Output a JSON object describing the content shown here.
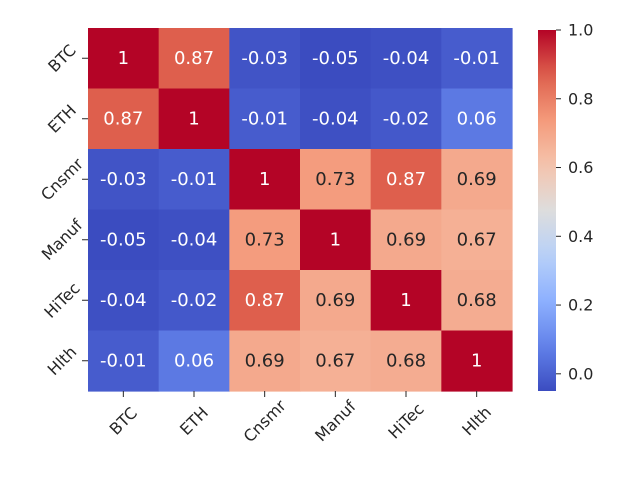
{
  "chart_data": {
    "type": "heatmap",
    "title": "",
    "xlabel": "",
    "ylabel": "",
    "x_labels": [
      "BTC",
      "ETH",
      "Cnsmr",
      "Manuf",
      "HiTec",
      "Hlth"
    ],
    "y_labels": [
      "BTC",
      "ETH",
      "Cnsmr",
      "Manuf",
      "HiTec",
      "Hlth"
    ],
    "values": [
      [
        1,
        0.87,
        -0.03,
        -0.05,
        -0.04,
        -0.01
      ],
      [
        0.87,
        1,
        -0.01,
        -0.04,
        -0.02,
        0.06
      ],
      [
        -0.03,
        -0.01,
        1,
        0.73,
        0.87,
        0.69
      ],
      [
        -0.05,
        -0.04,
        0.73,
        1,
        0.69,
        0.67
      ],
      [
        -0.04,
        -0.02,
        0.87,
        0.69,
        1,
        0.68
      ],
      [
        -0.01,
        0.06,
        0.69,
        0.67,
        0.68,
        1
      ]
    ],
    "annotations": [
      [
        "1",
        "0.87",
        "-0.03",
        "-0.05",
        "-0.04",
        "-0.01"
      ],
      [
        "0.87",
        "1",
        "-0.01",
        "-0.04",
        "-0.02",
        "0.06"
      ],
      [
        "-0.03",
        "-0.01",
        "1",
        "0.73",
        "0.87",
        "0.69"
      ],
      [
        "-0.05",
        "-0.04",
        "0.73",
        "1",
        "0.69",
        "0.67"
      ],
      [
        "-0.04",
        "-0.02",
        "0.87",
        "0.69",
        "1",
        "0.68"
      ],
      [
        "-0.01",
        "0.06",
        "0.69",
        "0.67",
        "0.68",
        "1"
      ]
    ],
    "colormap": "coolwarm",
    "colorbar": {
      "vmin": -0.05,
      "vmax": 1.0,
      "ticks": [
        0.0,
        0.2,
        0.4,
        0.6,
        0.8,
        1.0
      ],
      "tick_labels": [
        "0.0",
        "0.2",
        "0.4",
        "0.6",
        "0.8",
        "1.0"
      ]
    }
  }
}
